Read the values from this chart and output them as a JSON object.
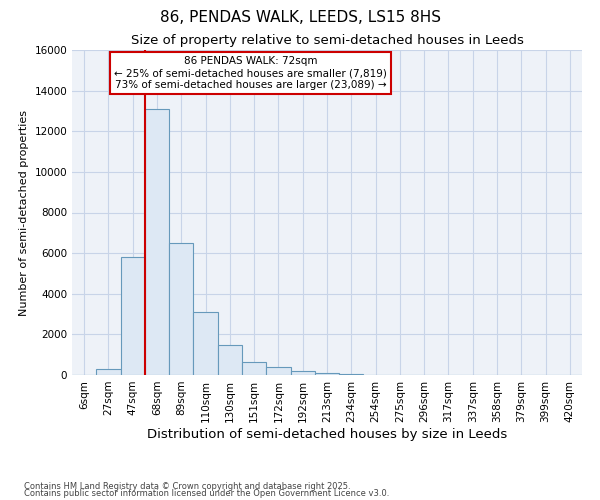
{
  "title": "86, PENDAS WALK, LEEDS, LS15 8HS",
  "subtitle": "Size of property relative to semi-detached houses in Leeds",
  "xlabel": "Distribution of semi-detached houses by size in Leeds",
  "ylabel": "Number of semi-detached properties",
  "bar_color": "#dde8f4",
  "bar_edge_color": "#6699bb",
  "grid_color": "#c8d4e8",
  "background_color": "#eef2f8",
  "annotation_box_color": "#cc0000",
  "vline_color": "#cc0000",
  "categories": [
    "6sqm",
    "27sqm",
    "47sqm",
    "68sqm",
    "89sqm",
    "110sqm",
    "130sqm",
    "151sqm",
    "172sqm",
    "192sqm",
    "213sqm",
    "234sqm",
    "254sqm",
    "275sqm",
    "296sqm",
    "317sqm",
    "337sqm",
    "358sqm",
    "379sqm",
    "399sqm",
    "420sqm"
  ],
  "bar_heights": [
    0,
    300,
    5800,
    13100,
    6500,
    3100,
    1500,
    650,
    400,
    200,
    100,
    50,
    20,
    0,
    0,
    0,
    0,
    0,
    0,
    0,
    0
  ],
  "property_label": "86 PENDAS WALK: 72sqm",
  "pct_smaller": "25%",
  "n_smaller": "7,819",
  "pct_larger": "73%",
  "n_larger": "23,089",
  "vline_x_index": 2.5,
  "ylim": [
    0,
    16000
  ],
  "yticks": [
    0,
    2000,
    4000,
    6000,
    8000,
    10000,
    12000,
    14000,
    16000
  ],
  "footer1": "Contains HM Land Registry data © Crown copyright and database right 2025.",
  "footer2": "Contains public sector information licensed under the Open Government Licence v3.0.",
  "title_fontsize": 11,
  "subtitle_fontsize": 9.5,
  "xlabel_fontsize": 9.5,
  "ylabel_fontsize": 8,
  "tick_fontsize": 7.5,
  "footer_fontsize": 6,
  "ann_fontsize": 7.5
}
